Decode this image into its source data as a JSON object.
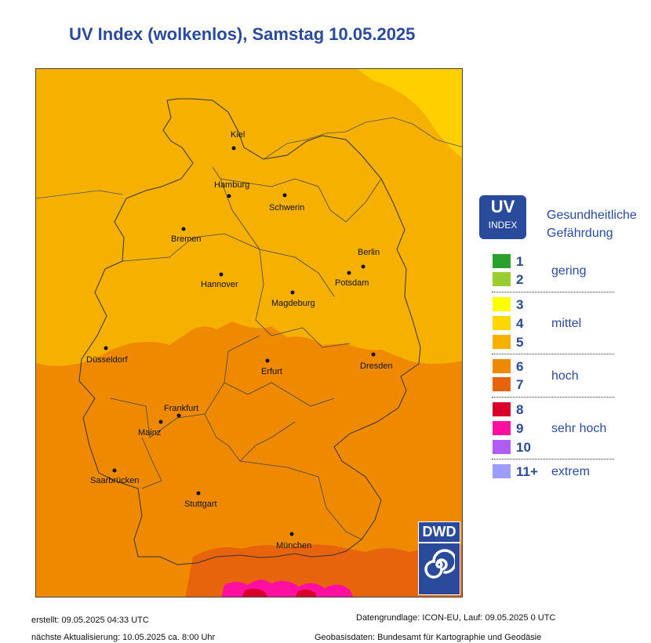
{
  "title": "UV Index (wolkenlos), Samstag 10.05.2025",
  "cities": [
    {
      "name": "Kiel"
    },
    {
      "name": "Hamburg"
    },
    {
      "name": "Schwerin"
    },
    {
      "name": "Bremen"
    },
    {
      "name": "Berlin"
    },
    {
      "name": "Potsdam"
    },
    {
      "name": "Hannover"
    },
    {
      "name": "Magdeburg"
    },
    {
      "name": "Düsseldorf"
    },
    {
      "name": "Dresden"
    },
    {
      "name": "Erfurt"
    },
    {
      "name": "Frankfurt"
    },
    {
      "name": "Mainz"
    },
    {
      "name": "Saarbrücken"
    },
    {
      "name": "Stuttgart"
    },
    {
      "name": "München"
    }
  ],
  "logo": {
    "text": "DWD"
  },
  "legend": {
    "badge_top": "UV",
    "badge_bottom": "INDEX",
    "heading_line1": "Gesundheitliche",
    "heading_line2": "Gefährdung",
    "levels": [
      {
        "label": "1",
        "color": "#2ca02c"
      },
      {
        "label": "2",
        "color": "#9acd32"
      },
      {
        "label": "3",
        "color": "#ffff00"
      },
      {
        "label": "4",
        "color": "#ffd700"
      },
      {
        "label": "5",
        "color": "#f6b000"
      },
      {
        "label": "6",
        "color": "#ef8a00"
      },
      {
        "label": "7",
        "color": "#e8640c"
      },
      {
        "label": "8",
        "color": "#d8002a"
      },
      {
        "label": "9",
        "color": "#ff0fa0"
      },
      {
        "label": "10",
        "color": "#b05cf5"
      },
      {
        "label": "11+",
        "color": "#9f9cff"
      }
    ],
    "categories": [
      "gering",
      "mittel",
      "hoch",
      "sehr hoch",
      "extrem"
    ]
  },
  "footer": {
    "created": "erstellt: 09.05.2025 04:33 UTC",
    "next_update": "nächste Aktualisierung:  10.05.2025 ca. 8:00 Uhr",
    "data_basis": "Datengrundlage: ICON-EU, Lauf: 09.05.2025 0 UTC",
    "geo_basis": "Geobasisdaten: Bundesamt für Kartographie und Geodäsie"
  }
}
